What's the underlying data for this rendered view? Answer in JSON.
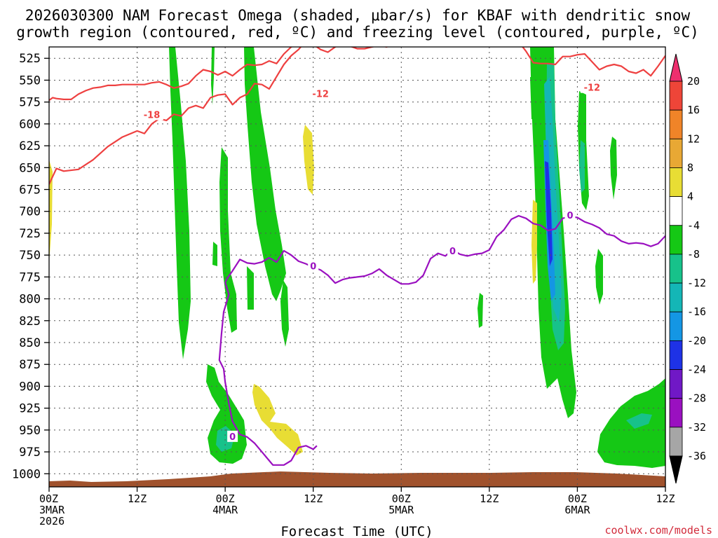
{
  "title_line1": "2026030300 NAM Forecast Omega (shaded, μbar/s) for KBAF with dendritic snow",
  "title_line2": "growth region (contoured, red, ºC) and freezing level (contoured, purple, ºC)",
  "credit": "coolwx.com/models",
  "chart_data": {
    "type": "time-height cross-section",
    "title": "2026030300 NAM Forecast Omega (shaded, μbar/s) for KBAF with dendritic snow growth region (contoured, red, ºC) and freezing level (contoured, purple, ºC)",
    "xlabel": "Forecast Time (UTC)",
    "ylabel": "",
    "xlim_hours": [
      0,
      84
    ],
    "ylim_hpa": [
      1015,
      512
    ],
    "grid": true,
    "y_ticks": [
      525,
      550,
      575,
      600,
      625,
      650,
      675,
      700,
      725,
      750,
      775,
      800,
      825,
      850,
      875,
      900,
      925,
      950,
      975,
      1000
    ],
    "x_ticks": [
      {
        "hour": 0,
        "lines": [
          "00Z",
          "3MAR",
          "2026"
        ]
      },
      {
        "hour": 12,
        "lines": [
          "12Z"
        ]
      },
      {
        "hour": 24,
        "lines": [
          "00Z",
          "4MAR"
        ]
      },
      {
        "hour": 36,
        "lines": [
          "12Z"
        ]
      },
      {
        "hour": 48,
        "lines": [
          "00Z",
          "5MAR"
        ]
      },
      {
        "hour": 60,
        "lines": [
          "12Z"
        ]
      },
      {
        "hour": 72,
        "lines": [
          "00Z",
          "6MAR"
        ]
      },
      {
        "hour": 84,
        "lines": [
          "12Z"
        ]
      }
    ],
    "colorbar": {
      "labels": [
        "20",
        "16",
        "12",
        "8",
        "4",
        "-4",
        "-8",
        "-12",
        "-16",
        "-20",
        "-24",
        "-28",
        "-32",
        "-36"
      ],
      "colors": [
        "#ee2f6e",
        "#ee4538",
        "#f08428",
        "#e8a834",
        "#e8dd34",
        "#ffffff",
        "#15c815",
        "#17c28a",
        "#14b6b6",
        "#1496e4",
        "#1e32e6",
        "#7018c6",
        "#9a10c0",
        "#a6a6a6",
        "#000000"
      ]
    },
    "series": [
      {
        "name": "-18",
        "color": "#ee4040",
        "x": [
          0,
          0.5,
          1,
          2,
          4,
          6,
          8,
          10,
          12,
          13,
          14,
          15,
          16,
          17,
          18,
          19,
          20,
          21,
          22,
          23,
          24,
          25,
          26,
          27,
          28,
          29,
          30,
          31,
          32,
          33,
          34,
          35
        ],
        "y": [
          669,
          660,
          651,
          654,
          652,
          641,
          626,
          615,
          608,
          611,
          600,
          594,
          596,
          589,
          591,
          582,
          579,
          582,
          570,
          567,
          566,
          578,
          570,
          566,
          554,
          555,
          560,
          546,
          532,
          522,
          515,
          505
        ],
        "labels": [
          {
            "x": 14,
            "y": 590,
            "text": "-18"
          }
        ]
      },
      {
        "name": "-12",
        "color": "#ee4040",
        "x": [
          0,
          0.5,
          1,
          2,
          3,
          4,
          5,
          6,
          7,
          8,
          9,
          10,
          11,
          12,
          13,
          14,
          15,
          16,
          17,
          18,
          19,
          20,
          21,
          22,
          23,
          24,
          25,
          26,
          27,
          28,
          29,
          30,
          31,
          32,
          33,
          34,
          35,
          36,
          37,
          38,
          39,
          40,
          41,
          42,
          43,
          44,
          45,
          46,
          47,
          48,
          49,
          50,
          51,
          52,
          53,
          54,
          55,
          56,
          57,
          58,
          59,
          60,
          61,
          62,
          63,
          64,
          65,
          66,
          67,
          68,
          69,
          70,
          71,
          72,
          73,
          74,
          75,
          76,
          77,
          78,
          79,
          80,
          81,
          82,
          83,
          84
        ],
        "y": [
          573,
          570,
          571,
          572,
          572,
          566,
          562,
          559,
          558,
          556,
          556,
          555,
          555,
          555,
          555,
          553,
          552,
          555,
          559,
          557,
          554,
          545,
          538,
          540,
          544,
          540,
          545,
          538,
          532,
          533,
          532,
          528,
          531,
          520,
          512,
          508,
          504,
          509,
          515,
          518,
          512,
          507,
          511,
          514,
          514,
          512,
          510,
          512,
          507,
          508,
          509,
          506,
          505,
          506,
          506,
          505,
          505,
          505,
          507,
          506,
          506,
          505,
          505,
          505,
          505,
          506,
          517,
          530,
          531,
          531,
          532,
          523,
          523,
          521,
          520,
          529,
          538,
          534,
          532,
          534,
          540,
          542,
          538,
          545,
          534,
          522
        ],
        "labels": [
          {
            "x": 37,
            "y": 566,
            "text": "-12"
          },
          {
            "x": 74,
            "y": 559,
            "text": "-12"
          }
        ]
      },
      {
        "name": "0",
        "color": "#9a10c0",
        "x": [
          24,
          24.5,
          25,
          26,
          27,
          28,
          29,
          30,
          31,
          32,
          33,
          34,
          35,
          36,
          37,
          38,
          39,
          40,
          41,
          42,
          43,
          44,
          45,
          46,
          47,
          48,
          49,
          50,
          51,
          52,
          53,
          54,
          55,
          56,
          57,
          58,
          59,
          60,
          61,
          62,
          63,
          64,
          65,
          66,
          67,
          68,
          69,
          70,
          71,
          72,
          73,
          74,
          75,
          76,
          77,
          78,
          79,
          80,
          81,
          82,
          83,
          84
        ],
        "y": [
          781,
          774,
          768,
          755,
          759,
          760,
          758,
          753,
          758,
          745,
          750,
          757,
          760,
          764,
          767,
          773,
          782,
          778,
          776,
          775,
          774,
          771,
          766,
          773,
          778,
          783,
          783,
          781,
          773,
          754,
          748,
          751,
          744,
          749,
          751,
          749,
          748,
          744,
          729,
          721,
          709,
          705,
          708,
          714,
          716,
          722,
          720,
          708,
          706,
          707,
          712,
          715,
          719,
          726,
          728,
          734,
          737,
          736,
          737,
          740,
          737,
          728
        ],
        "labels": [
          {
            "x": 36,
            "y": 763,
            "text": "0"
          },
          {
            "x": 55,
            "y": 746,
            "text": "0"
          },
          {
            "x": 71,
            "y": 705,
            "text": "0"
          }
        ]
      },
      {
        "name": "0",
        "color": "#9a10c0",
        "x": [
          24,
          24.5,
          23.8,
          23.5,
          23.2,
          23.8,
          24,
          24.5,
          25,
          26,
          27,
          28,
          29,
          30,
          30.5,
          31,
          32,
          33,
          34,
          35,
          36,
          36.5
        ],
        "y": [
          781,
          795,
          815,
          840,
          870,
          880,
          895,
          920,
          940,
          955,
          958,
          965,
          975,
          985,
          990,
          990,
          990,
          985,
          970,
          968,
          972,
          968
        ],
        "labels": [
          {
            "x": 25,
            "y": 958,
            "text": "0"
          }
        ]
      }
    ],
    "annotations": [
      "-18",
      "-12",
      "-12",
      "0",
      "0",
      "0",
      "0"
    ]
  }
}
